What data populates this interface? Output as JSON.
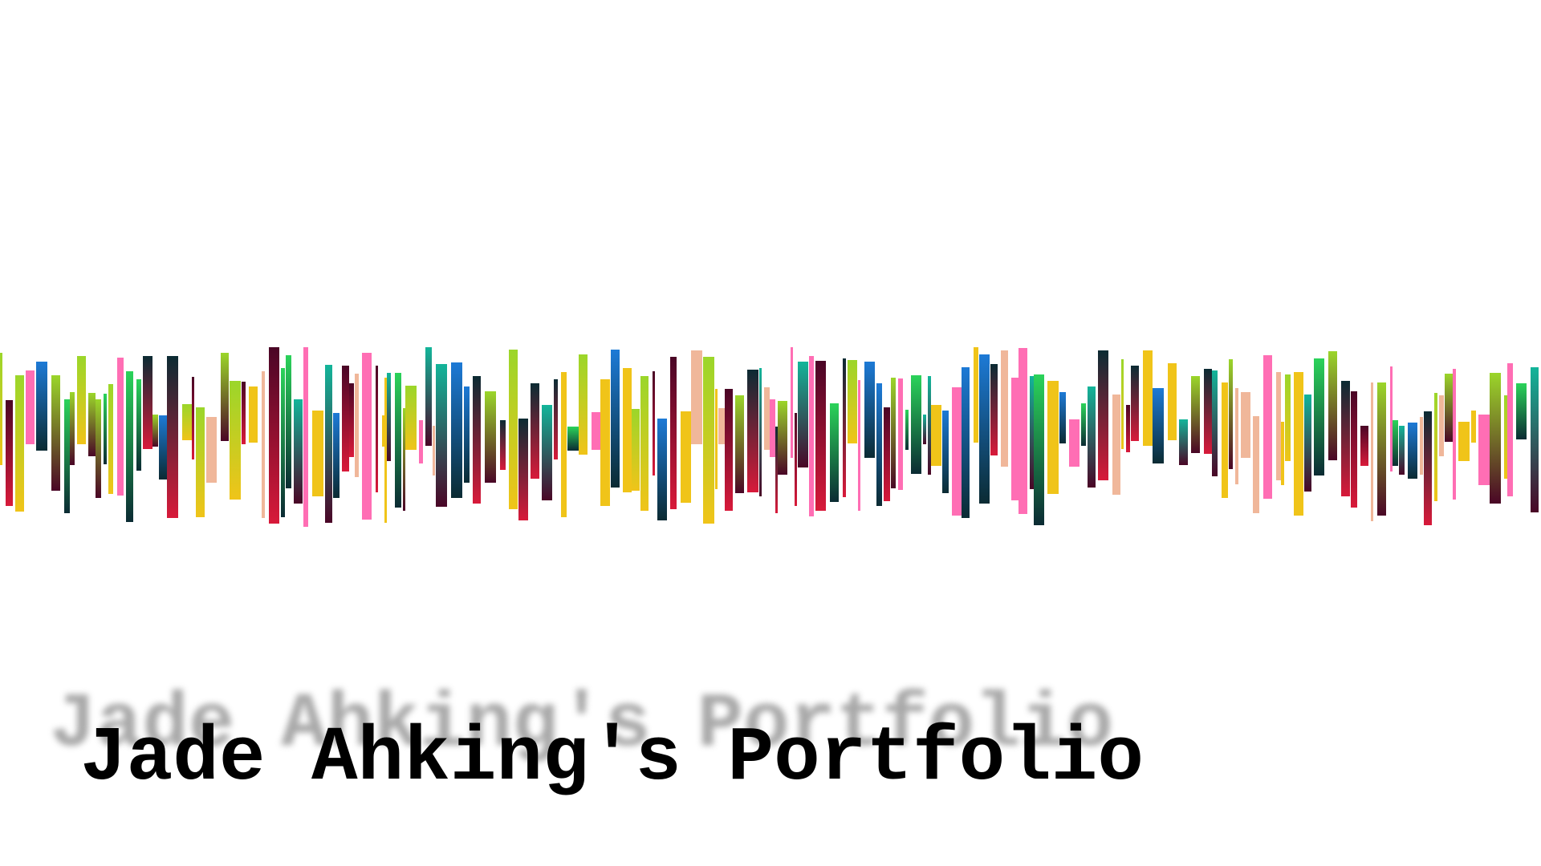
{
  "hero": {
    "title": "Jade Ahking's Portfolio"
  },
  "waveform": {
    "palette": {
      "peach": "#f0b79a",
      "yellow": "#f0c419",
      "lime": "#9bd62a",
      "green": "#2bd35a",
      "teal": "#13b59a",
      "blue": "#1d7ad6",
      "pink": "#ff6eb4",
      "maroon": "#4a0626",
      "dark-teal": "#0b2b33",
      "red": "#d81a3a"
    }
  }
}
